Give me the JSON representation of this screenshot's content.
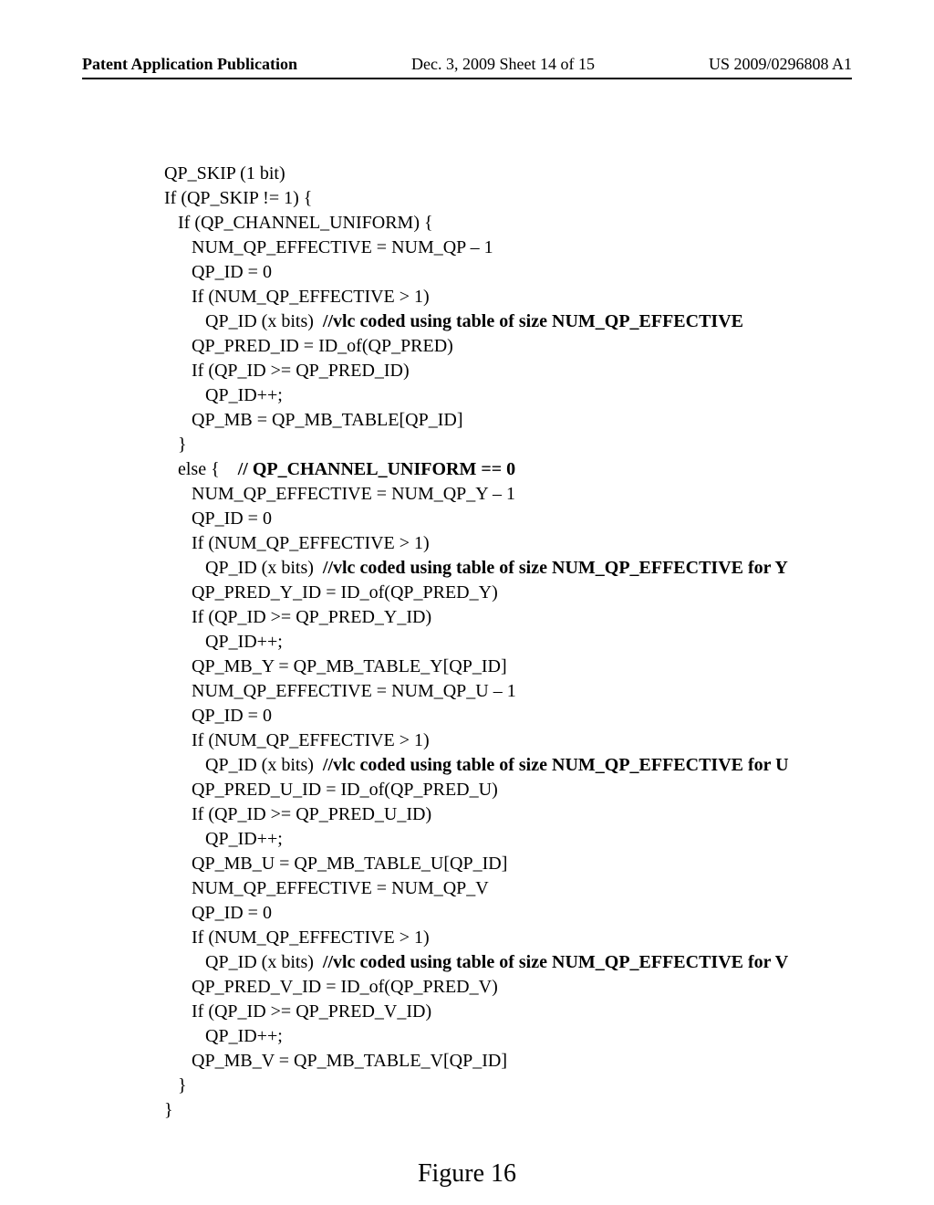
{
  "header": {
    "left": "Patent Application Publication",
    "mid": "Dec. 3, 2009   Sheet 14 of 15",
    "right": "US 2009/0296808 A1"
  },
  "figure_caption": "Figure 16",
  "code": {
    "l01": "QP_SKIP (1 bit)",
    "l02": "If (QP_SKIP != 1) {",
    "l03": "   If (QP_CHANNEL_UNIFORM) {",
    "l04": "      NUM_QP_EFFECTIVE = NUM_QP – 1",
    "l05": "      QP_ID = 0",
    "l06": "      If (NUM_QP_EFFECTIVE > 1)",
    "l07a": "         QP_ID (x bits)  ",
    "l07b": "//vlc coded using table of size NUM_QP_EFFECTIVE",
    "l08": "      QP_PRED_ID = ID_of(QP_PRED)",
    "l09": "      If (QP_ID >= QP_PRED_ID)",
    "l10": "         QP_ID++;",
    "l11": "      QP_MB = QP_MB_TABLE[QP_ID]",
    "l12": "   }",
    "l13a": "   else {    ",
    "l13b": "// QP_CHANNEL_UNIFORM == 0",
    "l14": "      NUM_QP_EFFECTIVE = NUM_QP_Y – 1",
    "l15": "      QP_ID = 0",
    "l16": "      If (NUM_QP_EFFECTIVE > 1)",
    "l17a": "         QP_ID (x bits)  ",
    "l17b": "//vlc coded using table of size NUM_QP_EFFECTIVE for Y",
    "l18": "      QP_PRED_Y_ID = ID_of(QP_PRED_Y)",
    "l19": "      If (QP_ID >= QP_PRED_Y_ID)",
    "l20": "         QP_ID++;",
    "l21": "      QP_MB_Y = QP_MB_TABLE_Y[QP_ID]",
    "l22": "      NUM_QP_EFFECTIVE = NUM_QP_U – 1",
    "l23": "      QP_ID = 0",
    "l24": "      If (NUM_QP_EFFECTIVE > 1)",
    "l25a": "         QP_ID (x bits)  ",
    "l25b": "//vlc coded using table of size NUM_QP_EFFECTIVE for U",
    "l26": "      QP_PRED_U_ID = ID_of(QP_PRED_U)",
    "l27": "      If (QP_ID >= QP_PRED_U_ID)",
    "l28": "         QP_ID++;",
    "l29": "      QP_MB_U = QP_MB_TABLE_U[QP_ID]",
    "l30": "      NUM_QP_EFFECTIVE = NUM_QP_V",
    "l31": "      QP_ID = 0",
    "l32": "      If (NUM_QP_EFFECTIVE > 1)",
    "l33a": "         QP_ID (x bits)  ",
    "l33b": "//vlc coded using table of size NUM_QP_EFFECTIVE for V",
    "l34": "      QP_PRED_V_ID = ID_of(QP_PRED_V)",
    "l35": "      If (QP_ID >= QP_PRED_V_ID)",
    "l36": "         QP_ID++;",
    "l37": "      QP_MB_V = QP_MB_TABLE_V[QP_ID]",
    "l38": "   }",
    "l39": "}"
  }
}
